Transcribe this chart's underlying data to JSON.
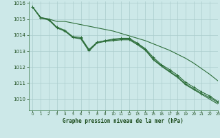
{
  "title": "Graphe pression niveau de la mer (hPa)",
  "background_color": "#cce8e8",
  "grid_color": "#aacccc",
  "line_color": "#2d6e3a",
  "text_color": "#1a4a1a",
  "xlim": [
    -0.5,
    23
  ],
  "ylim": [
    1009.3,
    1016.1
  ],
  "yticks": [
    1010,
    1011,
    1012,
    1013,
    1014,
    1015,
    1016
  ],
  "xticks": [
    0,
    1,
    2,
    3,
    4,
    5,
    6,
    7,
    8,
    9,
    10,
    11,
    12,
    13,
    14,
    15,
    16,
    17,
    18,
    19,
    20,
    21,
    22,
    23
  ],
  "line1": [
    1015.75,
    1015.1,
    1015.0,
    1014.85,
    1014.85,
    1014.75,
    1014.65,
    1014.55,
    1014.45,
    1014.35,
    1014.25,
    1014.1,
    1013.95,
    1013.8,
    1013.65,
    1013.45,
    1013.25,
    1013.05,
    1012.8,
    1012.55,
    1012.25,
    1011.9,
    1011.55,
    1011.15
  ],
  "line2_x": [
    0,
    1,
    2,
    3,
    4,
    5,
    6,
    7,
    8,
    9,
    10,
    11,
    12,
    13,
    14,
    15,
    16,
    17,
    18,
    19,
    20,
    21,
    22,
    23
  ],
  "line2": [
    1015.75,
    1015.05,
    1015.0,
    1014.5,
    1014.3,
    1013.9,
    1013.85,
    1013.1,
    1013.55,
    1013.65,
    1013.75,
    1013.8,
    1013.8,
    1013.5,
    1013.15,
    1012.6,
    1012.15,
    1011.85,
    1011.5,
    1011.05,
    1010.75,
    1010.45,
    1010.2,
    1009.85
  ],
  "line3_x": [
    0,
    1,
    2,
    3,
    4,
    5,
    6,
    7,
    8,
    9,
    10,
    11,
    12,
    13,
    14,
    15,
    16,
    17,
    18,
    19,
    20,
    21,
    22,
    23
  ],
  "line3": [
    1015.75,
    1015.05,
    1014.95,
    1014.45,
    1014.25,
    1013.85,
    1013.8,
    1013.05,
    1013.55,
    1013.65,
    1013.7,
    1013.75,
    1013.75,
    1013.45,
    1013.1,
    1012.5,
    1012.1,
    1011.75,
    1011.4,
    1010.95,
    1010.65,
    1010.35,
    1010.1,
    1009.8
  ],
  "line4": [
    1015.75,
    1015.1,
    1014.95,
    1014.45,
    1014.25,
    1013.85,
    1013.75,
    1013.0,
    1013.5,
    1013.6,
    1013.65,
    1013.7,
    1013.7,
    1013.4,
    1013.05,
    1012.45,
    1012.05,
    1011.7,
    1011.35,
    1010.9,
    1010.6,
    1010.3,
    1010.0,
    1009.7
  ]
}
